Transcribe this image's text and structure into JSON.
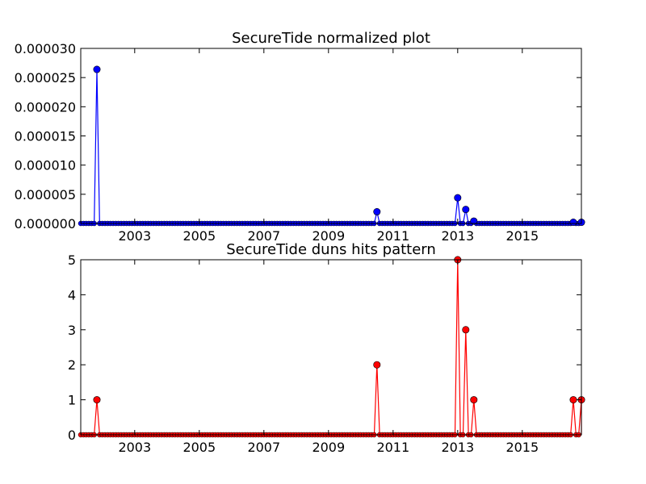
{
  "chart_data": [
    {
      "type": "line",
      "title": "SecureTide normalized plot",
      "xlabel": "",
      "ylabel": "",
      "x_range": [
        2001.33,
        2016.83
      ],
      "ylim": [
        0,
        3e-05
      ],
      "x_ticks": [
        "2003",
        "2005",
        "2007",
        "2009",
        "2011",
        "2013",
        "2015"
      ],
      "y_ticks": [
        "0.000000",
        "0.000005",
        "0.000010",
        "0.000015",
        "0.000020",
        "0.000025",
        "0.000030"
      ],
      "grid": false,
      "marker": "circle",
      "color": "#0000ff",
      "baseline_value": 0,
      "points": [
        {
          "x": 2001.83,
          "y": 2.64e-05
        },
        {
          "x": 2010.5,
          "y": 2e-06
        },
        {
          "x": 2013.0,
          "y": 4.4e-06
        },
        {
          "x": 2013.25,
          "y": 2.4e-06
        },
        {
          "x": 2013.5,
          "y": 4e-07
        },
        {
          "x": 2016.58,
          "y": 2e-07
        },
        {
          "x": 2016.83,
          "y": 2e-07
        }
      ]
    },
    {
      "type": "line",
      "title": "SecureTide duns hits pattern",
      "xlabel": "",
      "ylabel": "",
      "x_range": [
        2001.33,
        2016.83
      ],
      "ylim": [
        0,
        5
      ],
      "x_ticks": [
        "2003",
        "2005",
        "2007",
        "2009",
        "2011",
        "2013",
        "2015"
      ],
      "y_ticks": [
        "0",
        "1",
        "2",
        "3",
        "4",
        "5"
      ],
      "grid": false,
      "marker": "circle",
      "color": "#ff0000",
      "baseline_value": 0,
      "points": [
        {
          "x": 2001.83,
          "y": 1
        },
        {
          "x": 2010.5,
          "y": 2
        },
        {
          "x": 2013.0,
          "y": 5
        },
        {
          "x": 2013.25,
          "y": 3
        },
        {
          "x": 2013.5,
          "y": 1
        },
        {
          "x": 2016.58,
          "y": 1
        },
        {
          "x": 2016.83,
          "y": 1
        }
      ]
    }
  ]
}
